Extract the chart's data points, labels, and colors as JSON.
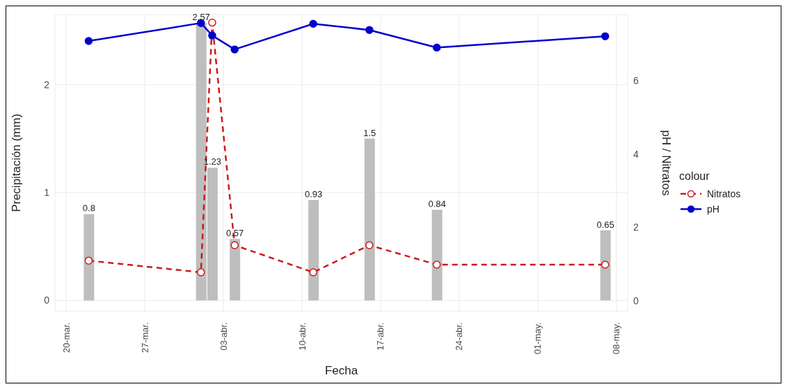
{
  "chart_data": {
    "type": "bar",
    "xlabel": "Fecha",
    "ylabel": "Precipitación (mm)",
    "y2label": "pH / Nitratos",
    "legend_title": "colour",
    "x": [
      "--03-22",
      "--04-01",
      "--04-02",
      "--04-04",
      "--04-11",
      "--04-16",
      "--04-22",
      "--05-07"
    ],
    "series": [
      {
        "color": "#bebebe",
        "values": [
          0.8,
          2.57,
          1.23,
          0.57,
          0.93,
          1.5,
          0.84,
          0.65
        ],
        "data_labels": true
      },
      {
        "type": "line",
        "name": "Nitratos",
        "color": "#cc1a1a",
        "axis": "y2",
        "marker": "circle",
        "line_style": "dashed",
        "values": [
          1.09,
          0.77,
          7.58,
          1.51,
          0.77,
          1.51,
          0.98,
          0.98
        ]
      },
      {
        "type": "line",
        "name": "pH",
        "color": "#0000cc",
        "axis": "y2",
        "marker": "circle",
        "line_style": "solid",
        "values": [
          7.08,
          7.57,
          7.23,
          6.85,
          7.55,
          7.38,
          6.9,
          7.21
        ]
      }
    ],
    "xlim": [
      "--03-19",
      "--05-09"
    ],
    "xticks": [
      {
        "value": "--03-20",
        "label": "20-mar."
      },
      {
        "value": "--03-27",
        "label": "27-mar."
      },
      {
        "value": "--04-03",
        "label": "03-abr."
      },
      {
        "value": "--04-10",
        "label": "10-abr."
      },
      {
        "value": "--04-17",
        "label": "17-abr."
      },
      {
        "value": "--04-24",
        "label": "24-abr."
      },
      {
        "value": "--05-01",
        "label": "01-may."
      },
      {
        "value": "--05-08",
        "label": "08-may."
      }
    ],
    "ylim": [
      -0.1,
      2.65
    ],
    "yticks": [
      0,
      1,
      2
    ],
    "y2lim": [
      -0.29,
      7.8
    ],
    "y2ticks": [
      0,
      2,
      4,
      6
    ],
    "grid": true,
    "legend": "right"
  }
}
